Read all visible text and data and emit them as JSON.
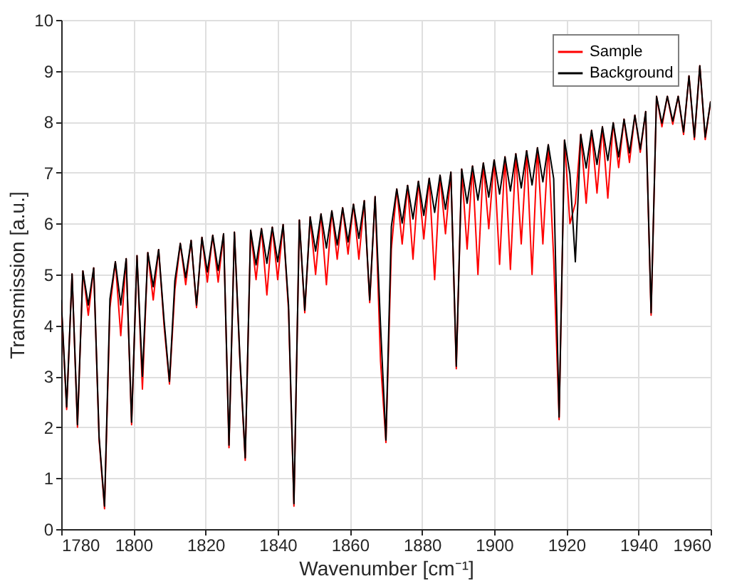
{
  "chart_data": {
    "type": "line",
    "xlabel": "Wavenumber [cm⁻¹]",
    "ylabel": "Transmission [a.u.]",
    "x": [
      1780,
      1781.5,
      1783,
      1784.5,
      1786,
      1787.5,
      1789,
      1790.5,
      1792,
      1793.5,
      1795,
      1796.5,
      1798,
      1799.5,
      1801,
      1802.5,
      1804,
      1805.5,
      1807,
      1808.5,
      1810,
      1811.5,
      1813,
      1814.5,
      1816,
      1817.5,
      1819,
      1820.5,
      1822,
      1823.5,
      1825,
      1826.5,
      1828,
      1829.5,
      1831,
      1832.5,
      1834,
      1835.5,
      1837,
      1838.5,
      1840,
      1841.5,
      1843,
      1844.5,
      1846,
      1847.5,
      1849,
      1850.5,
      1852,
      1853.5,
      1855,
      1856.5,
      1858,
      1859.5,
      1861,
      1862.5,
      1864,
      1865.5,
      1867,
      1868.5,
      1870,
      1871.5,
      1873,
      1874.5,
      1876,
      1877.5,
      1879,
      1880.5,
      1882,
      1883.5,
      1885,
      1886.5,
      1888,
      1889.5,
      1891,
      1892.5,
      1894,
      1895.5,
      1897,
      1898.5,
      1900,
      1901.5,
      1903,
      1904.5,
      1906,
      1907.5,
      1909,
      1910.5,
      1912,
      1913.5,
      1915,
      1916.5,
      1918,
      1919.5,
      1921,
      1922.5,
      1924,
      1925.5,
      1927,
      1928.5,
      1930,
      1931.5,
      1933,
      1934.5,
      1936,
      1937.5,
      1939,
      1940.5,
      1942,
      1943.5,
      1945,
      1946.5,
      1948,
      1949.5,
      1951,
      1952.5,
      1954,
      1955.5,
      1957,
      1958.5,
      1960
    ],
    "series": [
      {
        "name": "Sample",
        "color": "#ff0000",
        "values": [
          4.45,
          2.35,
          5.01,
          2.0,
          5.07,
          4.2,
          5.13,
          1.75,
          0.4,
          4.35,
          5.25,
          3.8,
          5.31,
          2.05,
          5.37,
          2.75,
          5.43,
          4.5,
          5.49,
          4.0,
          2.85,
          4.7,
          5.61,
          4.8,
          5.67,
          4.35,
          5.73,
          4.85,
          5.77,
          4.85,
          5.8,
          1.6,
          5.83,
          3.35,
          1.35,
          5.87,
          4.9,
          5.9,
          4.6,
          5.93,
          4.9,
          5.98,
          4.3,
          0.45,
          6.07,
          4.25,
          6.13,
          5.0,
          6.19,
          4.8,
          6.25,
          5.3,
          6.31,
          5.4,
          6.38,
          5.3,
          6.45,
          4.45,
          6.53,
          3.3,
          1.7,
          5.5,
          6.68,
          5.6,
          6.75,
          5.3,
          6.83,
          5.7,
          6.89,
          4.9,
          6.95,
          5.8,
          7.01,
          3.15,
          7.07,
          5.5,
          7.13,
          5.0,
          7.19,
          5.9,
          7.25,
          5.2,
          7.31,
          5.1,
          7.37,
          5.6,
          7.43,
          5.0,
          7.49,
          5.6,
          7.55,
          5.3,
          2.15,
          7.64,
          6.0,
          6.4,
          7.75,
          6.4,
          7.83,
          6.6,
          7.9,
          6.5,
          7.98,
          7.1,
          8.05,
          7.2,
          8.13,
          7.4,
          8.2,
          4.2,
          8.5,
          7.9,
          8.5,
          7.95,
          8.5,
          7.75,
          8.9,
          7.65,
          9.1,
          7.65,
          8.4
        ]
      },
      {
        "name": "Background",
        "color": "#000000",
        "values": [
          4.5,
          2.4,
          5.01,
          2.05,
          5.07,
          4.4,
          5.13,
          1.8,
          0.45,
          4.52,
          5.25,
          4.4,
          5.31,
          2.1,
          5.37,
          3.0,
          5.43,
          4.76,
          5.49,
          4.1,
          2.9,
          4.88,
          5.61,
          4.94,
          5.67,
          4.4,
          5.73,
          5.05,
          5.77,
          5.08,
          5.8,
          1.65,
          5.83,
          3.4,
          1.4,
          5.87,
          5.19,
          5.9,
          5.22,
          5.93,
          5.25,
          5.98,
          4.4,
          0.5,
          6.07,
          4.3,
          6.13,
          5.46,
          6.19,
          5.52,
          6.25,
          5.58,
          6.31,
          5.64,
          6.38,
          5.71,
          6.45,
          4.5,
          6.53,
          4.0,
          1.75,
          5.94,
          6.68,
          6.01,
          6.75,
          6.09,
          6.83,
          6.16,
          6.89,
          6.22,
          6.95,
          6.28,
          7.01,
          3.2,
          7.07,
          6.4,
          7.13,
          6.46,
          7.19,
          6.52,
          7.25,
          6.58,
          7.31,
          6.64,
          7.37,
          6.7,
          7.43,
          6.76,
          7.49,
          6.82,
          7.55,
          6.88,
          2.2,
          7.64,
          6.97,
          5.25,
          7.75,
          7.09,
          7.83,
          7.16,
          7.9,
          7.24,
          7.98,
          7.31,
          8.05,
          7.39,
          8.13,
          7.46,
          8.2,
          4.25,
          8.5,
          7.97,
          8.5,
          8.01,
          8.5,
          7.8,
          8.9,
          7.7,
          9.1,
          7.7,
          8.4
        ]
      }
    ],
    "xlim": [
      1780,
      1960
    ],
    "xticks": [
      1780,
      1800,
      1820,
      1840,
      1860,
      1880,
      1900,
      1920,
      1940,
      1960
    ],
    "ylim": [
      0,
      10
    ],
    "yticks": [
      0,
      1,
      2,
      3,
      4,
      5,
      6,
      7,
      8,
      9,
      10
    ],
    "grid": true,
    "legend": "top right"
  }
}
